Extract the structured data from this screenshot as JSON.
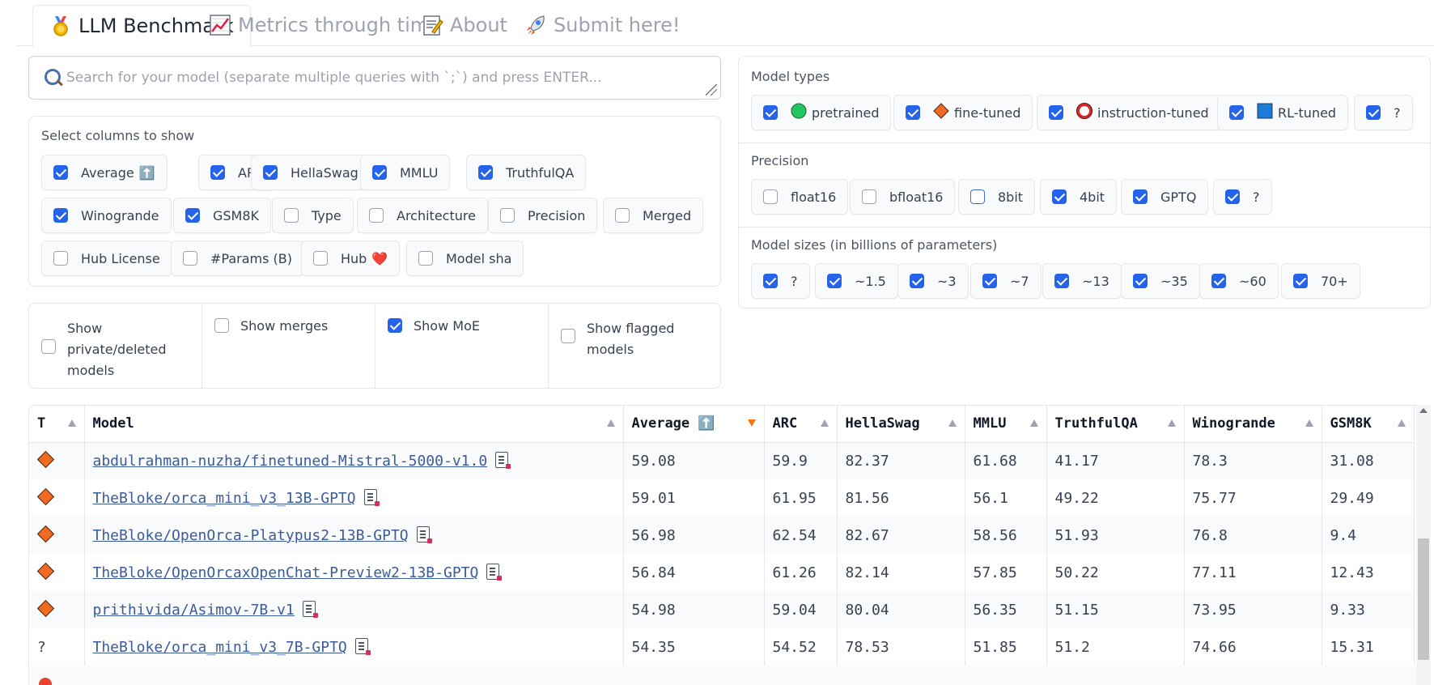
{
  "tabs": [
    {
      "label": "LLM Benchmark",
      "icon": "medal-icon",
      "active": true
    },
    {
      "label": "Metrics through time",
      "icon": "chart-increasing-icon",
      "active": false
    },
    {
      "label": "About",
      "icon": "memo-icon",
      "active": false
    },
    {
      "label": "Submit here!",
      "icon": "rocket-icon",
      "active": false
    }
  ],
  "search": {
    "placeholder": "Search for your model (separate multiple queries with `;`) and press ENTER..."
  },
  "columns": {
    "label": "Select columns to show",
    "items": [
      {
        "label": "Average",
        "emoji": "⬆️",
        "checked": true
      },
      {
        "label": "ARC",
        "checked": true
      },
      {
        "label": "HellaSwag",
        "checked": true
      },
      {
        "label": "MMLU",
        "checked": true
      },
      {
        "label": "TruthfulQA",
        "checked": true
      },
      {
        "label": "Winogrande",
        "checked": true
      },
      {
        "label": "GSM8K",
        "checked": true
      },
      {
        "label": "Type",
        "checked": false
      },
      {
        "label": "Architecture",
        "checked": false
      },
      {
        "label": "Precision",
        "checked": false
      },
      {
        "label": "Merged",
        "checked": false
      },
      {
        "label": "Hub License",
        "checked": false
      },
      {
        "label": "#Params (B)",
        "checked": false
      },
      {
        "label": "Hub",
        "emoji": "❤️",
        "checked": false
      },
      {
        "label": "Model sha",
        "checked": false
      }
    ]
  },
  "toggles": [
    {
      "label": "Show private/deleted models",
      "checked": false
    },
    {
      "label": "Show merges",
      "checked": false
    },
    {
      "label": "Show MoE",
      "checked": true
    },
    {
      "label": "Show flagged models",
      "checked": false
    }
  ],
  "model_types": {
    "label": "Model types",
    "items": [
      {
        "label": "pretrained",
        "icon": "green-circle-icon",
        "checked": true
      },
      {
        "label": "fine-tuned",
        "icon": "orange-diamond-icon",
        "checked": true
      },
      {
        "label": "instruction-tuned",
        "icon": "red-ring-icon",
        "checked": true
      },
      {
        "label": "RL-tuned",
        "icon": "blue-square-icon",
        "checked": true
      },
      {
        "label": "?",
        "checked": true
      }
    ]
  },
  "precision": {
    "label": "Precision",
    "items": [
      {
        "label": "float16",
        "checked": false
      },
      {
        "label": "bfloat16",
        "checked": false
      },
      {
        "label": "8bit",
        "checked": false
      },
      {
        "label": "4bit",
        "checked": true
      },
      {
        "label": "GPTQ",
        "checked": true
      },
      {
        "label": "?",
        "checked": true
      }
    ]
  },
  "sizes": {
    "label": "Model sizes (in billions of parameters)",
    "items": [
      {
        "label": "?",
        "checked": true
      },
      {
        "label": "~1.5",
        "checked": true
      },
      {
        "label": "~3",
        "checked": true
      },
      {
        "label": "~7",
        "checked": true
      },
      {
        "label": "~13",
        "checked": true
      },
      {
        "label": "~35",
        "checked": true
      },
      {
        "label": "~60",
        "checked": true
      },
      {
        "label": "70+",
        "checked": true
      }
    ]
  },
  "table": {
    "headers": [
      "T",
      "Model",
      "Average ⬆️",
      "ARC",
      "HellaSwag",
      "MMLU",
      "TruthfulQA",
      "Winogrande",
      "GSM8K"
    ],
    "rows": [
      {
        "type": "diamond",
        "model": "abdulrahman-nuzha/finetuned-Mistral-5000-v1.0",
        "values": [
          "59.08",
          "59.9",
          "82.37",
          "61.68",
          "41.17",
          "78.3",
          "31.08"
        ]
      },
      {
        "type": "diamond",
        "model": "TheBloke/orca_mini_v3_13B-GPTQ",
        "values": [
          "59.01",
          "61.95",
          "81.56",
          "56.1",
          "49.22",
          "75.77",
          "29.49"
        ]
      },
      {
        "type": "diamond",
        "model": "TheBloke/OpenOrca-Platypus2-13B-GPTQ",
        "values": [
          "56.98",
          "62.54",
          "82.67",
          "58.56",
          "51.93",
          "76.8",
          "9.4"
        ]
      },
      {
        "type": "diamond",
        "model": "TheBloke/OpenOrcaxOpenChat-Preview2-13B-GPTQ",
        "values": [
          "56.84",
          "61.26",
          "82.14",
          "57.85",
          "50.22",
          "77.11",
          "12.43"
        ]
      },
      {
        "type": "diamond",
        "model": "prithivida/Asimov-7B-v1",
        "values": [
          "54.98",
          "59.04",
          "80.04",
          "56.35",
          "51.15",
          "73.95",
          "9.33"
        ]
      },
      {
        "type": "?",
        "model": "TheBloke/orca_mini_v3_7B-GPTQ",
        "values": [
          "54.35",
          "54.52",
          "78.53",
          "51.85",
          "51.2",
          "74.66",
          "15.31"
        ]
      }
    ]
  }
}
